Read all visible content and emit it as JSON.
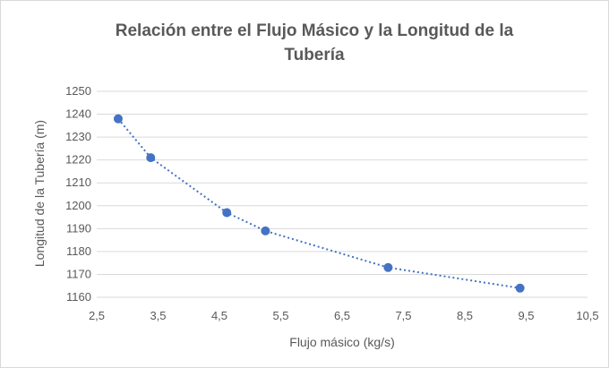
{
  "chart_data": {
    "type": "scatter",
    "title_line1": "Relación entre el Flujo Másico y la Longitud de la",
    "title_line2": "Tubería",
    "xlabel": "Flujo másico (kg/s)",
    "ylabel": "Longitud de la Tubería (m)",
    "xlim": [
      2.5,
      10.5
    ],
    "ylim": [
      1160,
      1250
    ],
    "x_ticks": [
      "2,5",
      "3,5",
      "4,5",
      "5,5",
      "6,5",
      "7,5",
      "8,5",
      "9,5",
      "10,5"
    ],
    "y_ticks": [
      "1160",
      "1170",
      "1180",
      "1190",
      "1200",
      "1210",
      "1220",
      "1230",
      "1240",
      "1250"
    ],
    "grid": "horizontal",
    "legend": "none",
    "trendline": "dotted polynomial",
    "series": [
      {
        "points": [
          {
            "x": 2.85,
            "y": 1238
          },
          {
            "x": 3.38,
            "y": 1221
          },
          {
            "x": 4.62,
            "y": 1197
          },
          {
            "x": 5.25,
            "y": 1189
          },
          {
            "x": 7.25,
            "y": 1173
          },
          {
            "x": 9.4,
            "y": 1164
          }
        ]
      }
    ],
    "colors": {
      "marker": "#4472c4",
      "trendline": "#4472c4",
      "gridline": "#d9d9d9",
      "text": "#595959"
    }
  }
}
